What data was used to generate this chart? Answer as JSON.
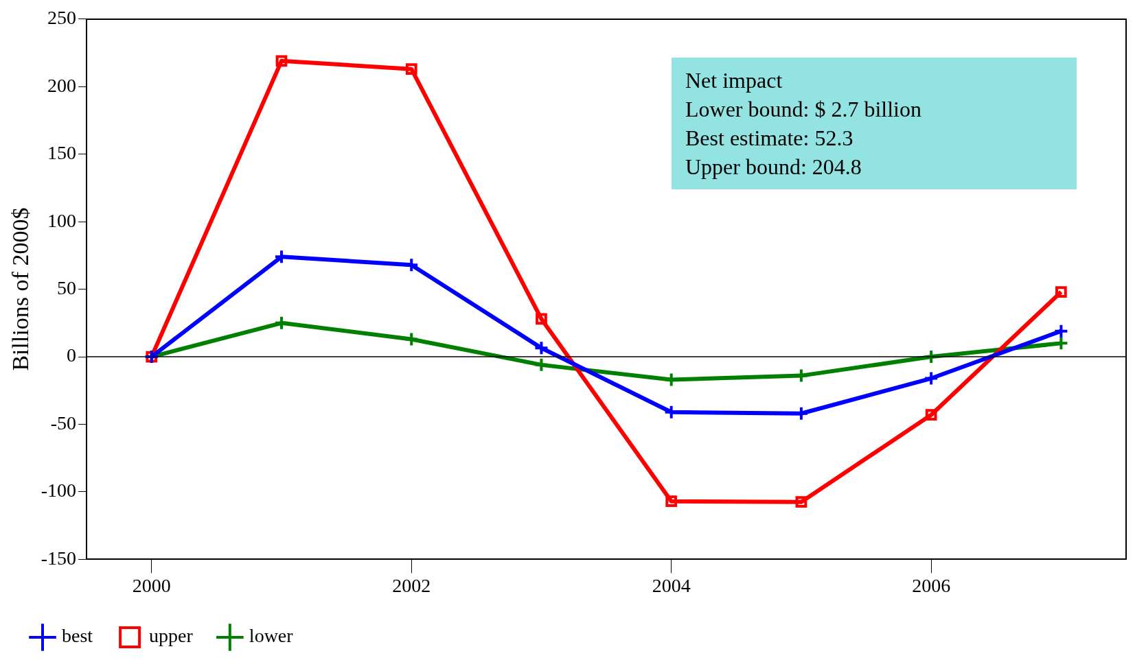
{
  "chart_data": {
    "type": "line",
    "ylabel": "Billions of 2000$",
    "x": [
      2000,
      2001,
      2002,
      2003,
      2004,
      2005,
      2006,
      2007
    ],
    "xlim": [
      1999.5,
      2007.5
    ],
    "xticks": [
      2000,
      2002,
      2004,
      2006
    ],
    "ylim": [
      -150,
      250
    ],
    "yticks": [
      -150,
      -100,
      -50,
      0,
      50,
      100,
      150,
      200,
      250
    ],
    "series": [
      {
        "name": "best",
        "color": "#0000ff",
        "marker": "cross",
        "values": [
          0,
          74,
          68,
          6.5,
          -41,
          -42,
          -16,
          19
        ]
      },
      {
        "name": "upper",
        "color": "#ff0000",
        "marker": "square",
        "values": [
          0,
          219,
          213,
          28,
          -107,
          -107.5,
          -43,
          48
        ]
      },
      {
        "name": "lower",
        "color": "#008000",
        "marker": "cross",
        "values": [
          0,
          25,
          13,
          -6,
          -17,
          -14,
          0,
          10
        ]
      }
    ],
    "ref_lines": [
      {
        "axis": "y",
        "value": 0,
        "color": "#000000"
      }
    ],
    "annotations": [
      "Net impact",
      "Lower bound:  $  2.7 billion",
      "Best estimate:  52.3",
      "Upper bound:  204.8"
    ],
    "legend": "bottom left"
  }
}
